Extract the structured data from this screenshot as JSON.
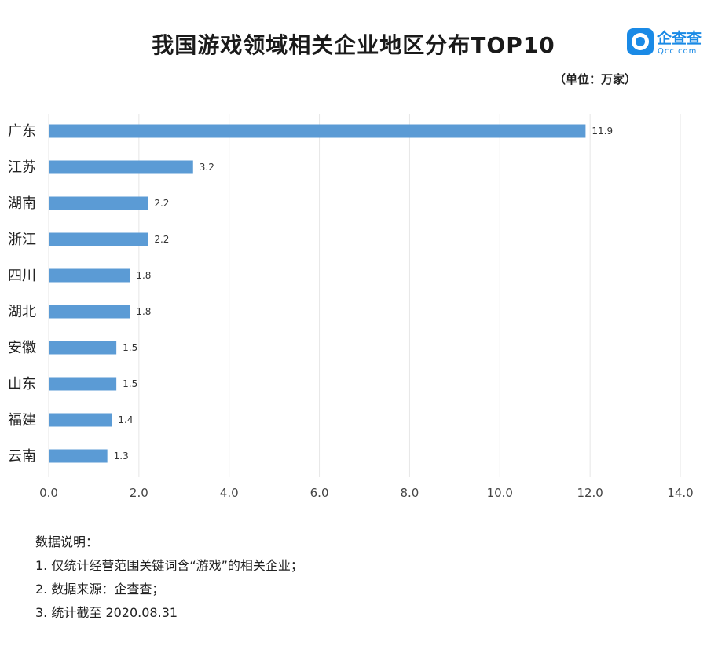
{
  "header": {
    "title": "我国游戏领域相关企业地区分布TOP10",
    "unit": "（单位：万家）"
  },
  "logo": {
    "name": "企查查",
    "sub": "Qcc.com"
  },
  "colors": {
    "bar": "#5b9bd5",
    "grid": "#e6e6e6",
    "brand": "#1a8ae6"
  },
  "chart_data": {
    "type": "bar",
    "orientation": "horizontal",
    "title": "我国游戏领域相关企业地区分布TOP10",
    "unit": "（单位：万家）",
    "categories": [
      "广东",
      "江苏",
      "湖南",
      "浙江",
      "四川",
      "湖北",
      "安徽",
      "山东",
      "福建",
      "云南"
    ],
    "values": [
      11.9,
      3.2,
      2.2,
      2.2,
      1.8,
      1.8,
      1.5,
      1.5,
      1.4,
      1.3
    ],
    "value_labels": [
      "11.9",
      "3.2",
      "2.2",
      "2.2",
      "1.8",
      "1.8",
      "1.5",
      "1.5",
      "1.4",
      "1.3"
    ],
    "xlim": [
      0,
      14
    ],
    "xticks": [
      "0.0",
      "2.0",
      "4.0",
      "6.0",
      "8.0",
      "10.0",
      "12.0",
      "14.0"
    ],
    "grid": true,
    "legend": "none"
  },
  "notes": {
    "heading": "数据说明：",
    "items": [
      "1. 仅统计经营范围关键词含“游戏”的相关企业；",
      "2. 数据来源：企查查；",
      "3. 统计截至 2020.08.31"
    ]
  }
}
